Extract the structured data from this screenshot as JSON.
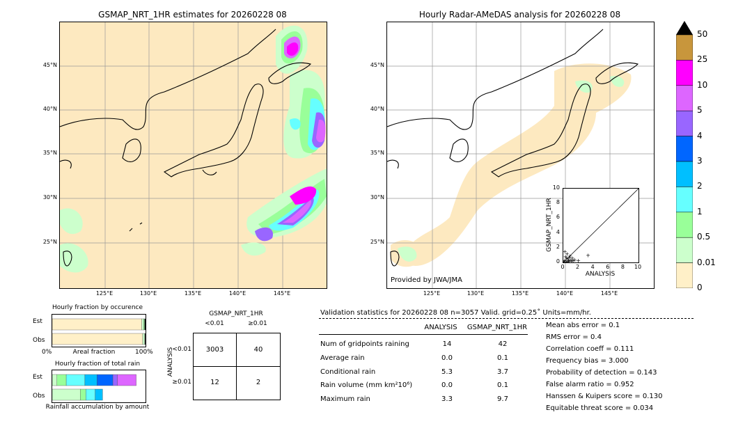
{
  "map_left": {
    "title": "GSMAP_NRT_1HR estimates for 20260228 08",
    "lat_ticks": [
      "45°N",
      "40°N",
      "35°N",
      "30°N",
      "25°N"
    ],
    "lon_ticks": [
      "125°E",
      "130°E",
      "135°E",
      "140°E",
      "145°E"
    ]
  },
  "map_right": {
    "title": "Hourly Radar-AMeDAS analysis for 20260228 08",
    "lat_ticks": [
      "45°N",
      "40°N",
      "35°N",
      "30°N",
      "25°N"
    ],
    "lon_ticks": [
      "125°E",
      "130°E",
      "135°E",
      "140°E",
      "145°E"
    ],
    "credit": "Provided by JWA/JMA"
  },
  "colorbar": {
    "labels": [
      "50",
      "25",
      "10",
      "5",
      "4",
      "3",
      "2",
      "1",
      "0.5",
      "0.01",
      "0"
    ],
    "colors": [
      "#c8963c",
      "#ff00ff",
      "#dd66ff",
      "#9966ff",
      "#0066ff",
      "#00bfff",
      "#66ffff",
      "#99ff99",
      "#ccffcc",
      "#fff0c8"
    ]
  },
  "chart_data": [
    {
      "type": "scatter",
      "title": "",
      "xlabel": "ANALYSIS",
      "ylabel": "GSMAP_NRT_1HR",
      "xlim": [
        0,
        10
      ],
      "ylim": [
        0,
        10
      ],
      "x_ticks": [
        "0",
        "2",
        "4",
        "6",
        "8",
        "10"
      ],
      "y_ticks": [
        "0",
        "2",
        "4",
        "6",
        "8",
        "10"
      ],
      "points": [
        [
          0.2,
          0.3
        ],
        [
          0.4,
          0.1
        ],
        [
          0.6,
          0.5
        ],
        [
          0.8,
          0.2
        ],
        [
          1.0,
          0.4
        ],
        [
          0.3,
          0.8
        ],
        [
          0.5,
          1.2
        ],
        [
          0.7,
          0.3
        ],
        [
          1.2,
          0.6
        ],
        [
          1.5,
          0.4
        ],
        [
          0.9,
          0.9
        ],
        [
          1.1,
          0.2
        ],
        [
          0.2,
          1.5
        ],
        [
          0.4,
          0.6
        ],
        [
          1.3,
          0.3
        ],
        [
          0.6,
          0.2
        ],
        [
          2.0,
          0.3
        ],
        [
          0.8,
          0.7
        ],
        [
          0.1,
          0.2
        ],
        [
          3.3,
          1.0
        ]
      ]
    },
    {
      "type": "bar",
      "title": "Hourly fraction by occurence",
      "categories": [
        "Est",
        "Obs"
      ],
      "xlabel": "Areal fraction",
      "x_ticks": [
        "0%",
        "100%"
      ],
      "series": [
        {
          "colors": [
            "#fff0c8",
            "#ccffcc",
            "#99ff99",
            "#000000"
          ],
          "values": [
            [
              0.96,
              0.02,
              0.01,
              0.01
            ],
            [
              0.97,
              0.02,
              0.005,
              0.005
            ]
          ]
        }
      ]
    },
    {
      "type": "bar",
      "title": "Hourly fraction of total rain",
      "categories": [
        "Est",
        "Obs"
      ],
      "xlabel": "Rainfall accumulation by amount",
      "series": [
        {
          "colors": [
            "#ccffcc",
            "#99ff99",
            "#66ffff",
            "#00bfff",
            "#0066ff",
            "#9966ff",
            "#dd66ff"
          ],
          "values": [
            [
              0.05,
              0.1,
              0.2,
              0.13,
              0.17,
              0.05,
              0.2
            ],
            [
              0.3,
              0.06,
              0.1,
              0.08,
              0.0,
              0.0,
              0.0
            ]
          ]
        }
      ]
    },
    {
      "type": "table",
      "title": "GSMAP_NRT_1HR",
      "columns": [
        "<0.01",
        "≥0.01"
      ],
      "row_header_title": "ANALYSIS",
      "rows": [
        "<0.01",
        "≥0.01"
      ],
      "cells": [
        [
          "3003",
          "40"
        ],
        [
          "12",
          "2"
        ]
      ]
    }
  ],
  "validation": {
    "header": "Validation statistics for 20260228 08  n=3057 Valid. grid=0.25˚ Units=mm/hr.",
    "col_analysis": "ANALYSIS",
    "col_gsmap": "GSMAP_NRT_1HR",
    "rows": [
      {
        "label": "Num of gridpoints raining",
        "analysis": "14",
        "gsmap": "42"
      },
      {
        "label": "Average rain",
        "analysis": "0.0",
        "gsmap": "0.1"
      },
      {
        "label": "Conditional rain",
        "analysis": "5.3",
        "gsmap": "3.7"
      },
      {
        "label": "Rain volume (mm km²10⁶)",
        "analysis": "0.0",
        "gsmap": "0.1"
      },
      {
        "label": "Maximum rain",
        "analysis": "3.3",
        "gsmap": "9.7"
      }
    ],
    "scores": [
      "Mean abs error =    0.1",
      "RMS error =    0.4",
      "Correlation coeff =  0.111",
      "Frequency bias =  3.000",
      "Probability of detection =  0.143",
      "False alarm ratio =  0.952",
      "Hanssen & Kuipers score =  0.130",
      "Equitable threat score =  0.034"
    ]
  }
}
